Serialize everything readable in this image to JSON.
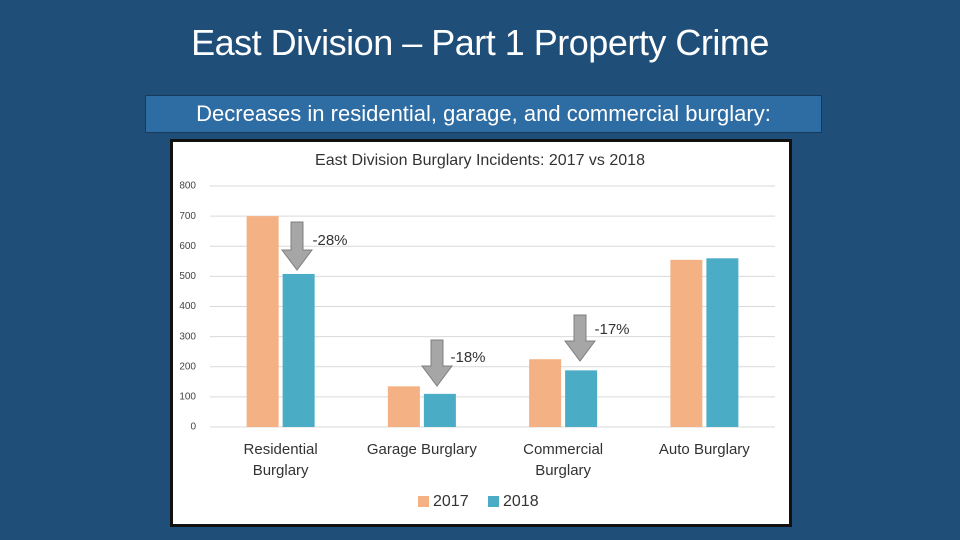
{
  "slide": {
    "title": "East Division – Part 1 Property Crime",
    "subtitle": "Decreases in residential, garage, and commercial burglary:"
  },
  "chart_data": {
    "type": "bar",
    "title": "East Division Burglary Incidents: 2017 vs 2018",
    "categories": [
      "Residential Burglary",
      "Garage Burglary",
      "Commercial Burglary",
      "Auto Burglary"
    ],
    "series": [
      {
        "name": "2017",
        "color": "#f4b183",
        "values": [
          700,
          135,
          225,
          555
        ]
      },
      {
        "name": "2018",
        "color": "#4bacc6",
        "values": [
          508,
          110,
          188,
          560
        ]
      }
    ],
    "annotations": [
      "-28%",
      "-18%",
      "-17%"
    ],
    "ylim": [
      0,
      800
    ],
    "yticks": [
      0,
      100,
      200,
      300,
      400,
      500,
      600,
      700,
      800
    ],
    "grid": true,
    "legend": "bottom"
  }
}
